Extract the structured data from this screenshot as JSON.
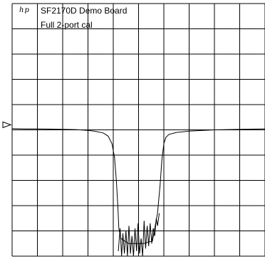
{
  "header": {
    "logo_text": "hp",
    "title": "SF2170D Demo Board",
    "subtitle": "Full 2-port cal"
  },
  "colors": {
    "trace": "#000000",
    "grid": "#000000",
    "background": "#ffffff"
  },
  "chart_data": {
    "type": "line",
    "title": "SF2170D Demo Board",
    "subtitle": "Full 2-port cal",
    "xlabel": "",
    "ylabel": "",
    "xlim": [
      0,
      10
    ],
    "ylim": [
      -10,
      0
    ],
    "grid": true,
    "grid_divisions": {
      "x": 10,
      "y": 10
    },
    "reference_level": -4.8,
    "reference_marker": "triangle-right",
    "series": [
      {
        "x": [
          0,
          0.5,
          1,
          1.5,
          2,
          2.5,
          3,
          3.3,
          3.6,
          3.8,
          3.95,
          4.05,
          4.12,
          4.18,
          4.22,
          4.3,
          4.6,
          5.2,
          5.55,
          5.75,
          5.85,
          5.92,
          6.0,
          6.08,
          6.2,
          6.5,
          7,
          8,
          9,
          10
        ],
        "y": [
          -4.95,
          -4.96,
          -4.96,
          -4.97,
          -4.98,
          -4.99,
          -5.02,
          -5.06,
          -5.12,
          -5.25,
          -5.55,
          -6.1,
          -7.0,
          -8.0,
          -8.9,
          -9.3,
          -9.5,
          -9.5,
          -9.4,
          -8.3,
          -7.2,
          -6.2,
          -5.55,
          -5.3,
          -5.18,
          -5.1,
          -5.05,
          -5.0,
          -4.98,
          -4.96
        ]
      },
      {
        "x": [
          4.2,
          4.27,
          4.33,
          4.38,
          4.44,
          4.5,
          4.56,
          4.62,
          4.68,
          4.74,
          4.8,
          4.86,
          4.92,
          4.98,
          5.04,
          5.1,
          5.16,
          5.22,
          5.28,
          5.34,
          5.4,
          5.46,
          5.52,
          5.58,
          5.64,
          5.7,
          5.75,
          5.82
        ],
        "y": [
          -9.8,
          -8.9,
          -10.0,
          -9.1,
          -9.9,
          -9.0,
          -10.0,
          -8.8,
          -9.9,
          -9.2,
          -10.0,
          -8.9,
          -9.8,
          -8.7,
          -9.9,
          -9.3,
          -10.0,
          -8.6,
          -9.7,
          -8.8,
          -9.6,
          -8.7,
          -9.5,
          -8.9,
          -9.2,
          -8.5,
          -8.8,
          -8.3
        ]
      }
    ]
  }
}
